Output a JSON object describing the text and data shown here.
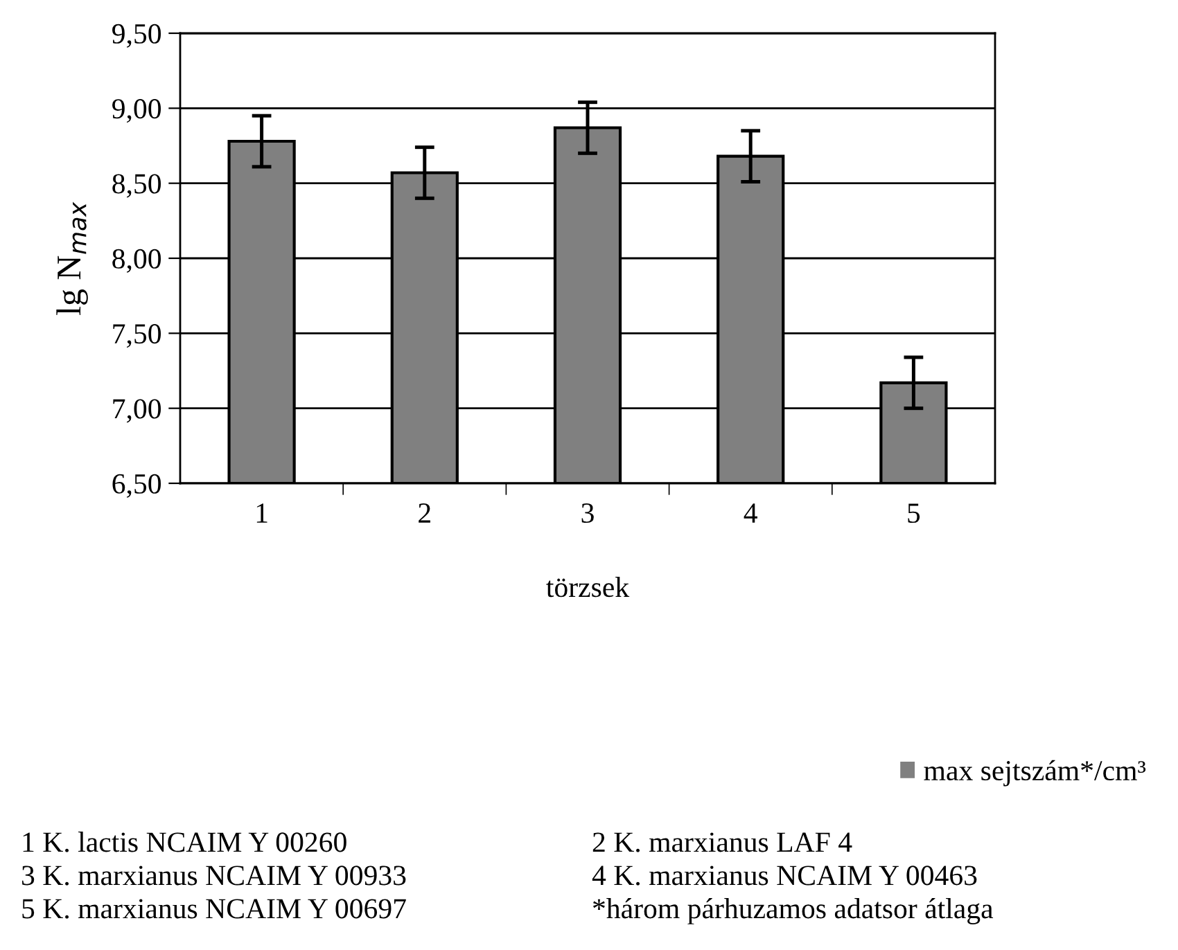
{
  "chart_data": {
    "type": "bar",
    "xlabel": "törzsek",
    "ylabel": "lg N$_{max}$",
    "categories": [
      "1",
      "2",
      "3",
      "4",
      "5"
    ],
    "series": [
      {
        "name": "max sejtszám*/cm³",
        "color": "#808080",
        "values": [
          8.78,
          8.57,
          8.87,
          8.68,
          7.17
        ],
        "errors": [
          0.17,
          0.17,
          0.17,
          0.17,
          0.17
        ]
      }
    ],
    "ylim": [
      6.5,
      9.5
    ],
    "yticks": [
      {
        "value": 6.5,
        "label": "6,50"
      },
      {
        "value": 7,
        "label": "7,00"
      },
      {
        "value": 7.5,
        "label": "7,50"
      },
      {
        "value": 8,
        "label": "8,00"
      },
      {
        "value": 8.5,
        "label": "8,50"
      },
      {
        "value": 9,
        "label": "9,00"
      },
      {
        "value": 9.5,
        "label": "9,50"
      }
    ],
    "grid": "y",
    "legend": "bottom right",
    "annotations": [
      "1 K. lactis NCAIM Y 00260",
      "2 K. marxianus LAF 4",
      "3 K. marxianus NCAIM Y 00933",
      "4 K. marxianus NCAIM Y 00463",
      "5 K. marxianus NCAIM Y 00697",
      "*három párhuzamos adatsor átlaga"
    ]
  }
}
